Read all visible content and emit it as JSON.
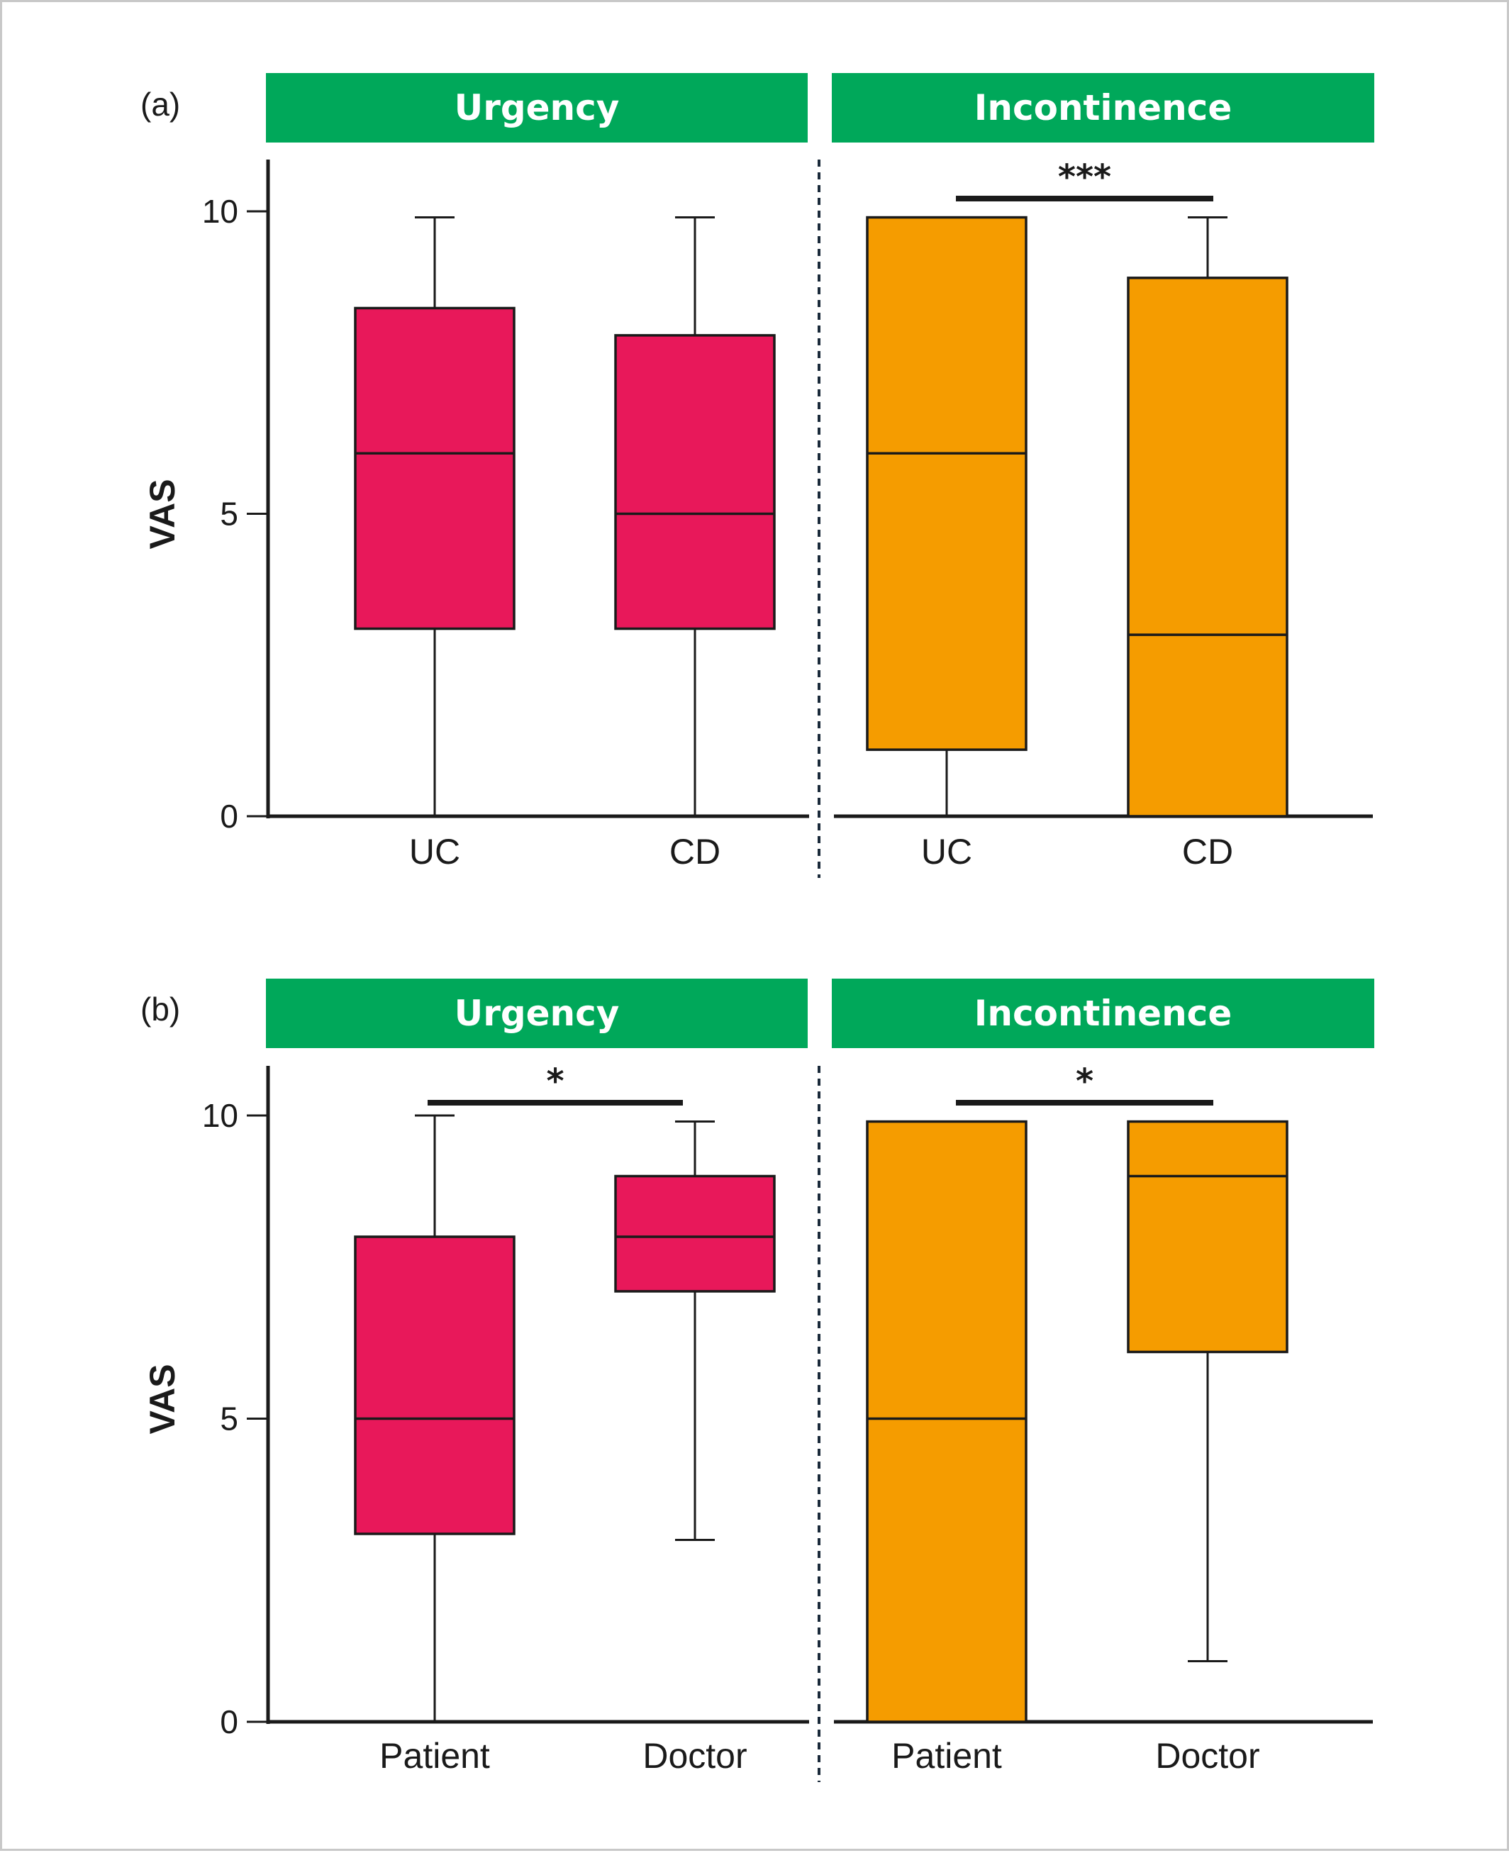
{
  "chart_data": [
    {
      "type": "box",
      "panel": "(a)",
      "ylabel": "VAS",
      "ylim": [
        0,
        10
      ],
      "yticks": [
        "0",
        "5",
        "10"
      ],
      "groups": [
        {
          "title": "Urgency",
          "color": "#e8185a",
          "categories": [
            "UC",
            "CD"
          ],
          "boxes": [
            {
              "min": 0,
              "q1": 3.1,
              "median": 6,
              "q3": 8.4,
              "max": 9.9
            },
            {
              "min": 0,
              "q1": 3.1,
              "median": 5,
              "q3": 7.95,
              "max": 9.9
            }
          ],
          "significance": ""
        },
        {
          "title": "Incontinence",
          "color": "#f59c00",
          "categories": [
            "UC",
            "CD"
          ],
          "boxes": [
            {
              "min": 0,
              "q1": 1.1,
              "median": 6,
              "q3": 9.9,
              "max": 9.9
            },
            {
              "min": 0,
              "q1": 0,
              "median": 3,
              "q3": 8.9,
              "max": 9.9
            }
          ],
          "significance": "***"
        }
      ]
    },
    {
      "type": "box",
      "panel": "(b)",
      "ylabel": "VAS",
      "ylim": [
        0,
        10
      ],
      "yticks": [
        "0",
        "5",
        "10"
      ],
      "groups": [
        {
          "title": "Urgency",
          "color": "#e8185a",
          "categories": [
            "Patient",
            "Doctor"
          ],
          "boxes": [
            {
              "min": 0,
              "q1": 3.1,
              "median": 5,
              "q3": 8,
              "max": 10
            },
            {
              "min": 3,
              "q1": 7.1,
              "median": 8,
              "q3": 9,
              "max": 9.9
            }
          ],
          "significance": "*"
        },
        {
          "title": "Incontinence",
          "color": "#f59c00",
          "categories": [
            "Patient",
            "Doctor"
          ],
          "boxes": [
            {
              "min": 0,
              "q1": 0,
              "median": 5,
              "q3": 9.9,
              "max": 9.9
            },
            {
              "min": 1,
              "q1": 6.1,
              "median": 9,
              "q3": 9.9,
              "max": 9.9
            }
          ],
          "significance": "*"
        }
      ]
    }
  ],
  "colors": {
    "banner": "#00a85a",
    "urgency": "#e8185a",
    "incontinence": "#f59c00",
    "ink": "#1a1a1a"
  }
}
